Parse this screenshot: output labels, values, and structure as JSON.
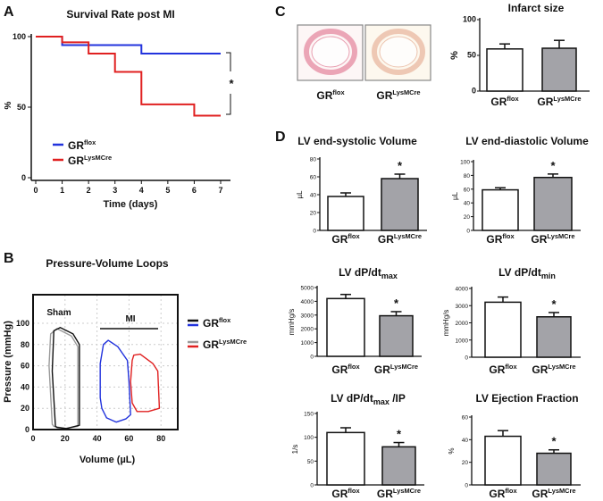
{
  "panel_labels": {
    "a": "A",
    "b": "B",
    "c": "C",
    "d": "D"
  },
  "groups": [
    {
      "base": "GR",
      "sup": "flox"
    },
    {
      "base": "GR",
      "sup": "LysMCre"
    }
  ],
  "colors": {
    "white_bar": "#ffffff",
    "gray_bar": "#a3a3a8",
    "blue": "#2233dd",
    "red": "#e02020",
    "black": "#111111",
    "gray": "#9a9a9a"
  },
  "chart_data": [
    {
      "type": "line",
      "title": "Survival Rate post MI",
      "xlabel": "Time (days)",
      "ylabel": "%",
      "xlim": [
        0,
        7
      ],
      "ylim": [
        0,
        100
      ],
      "xticks": [
        "0",
        "1",
        "2",
        "3",
        "4",
        "5",
        "6",
        "7"
      ],
      "yticks": [
        "0",
        "50",
        "100"
      ],
      "legend": "bottom-left",
      "significance": "*",
      "series": [
        {
          "group": 0,
          "color": "#2233dd",
          "x": [
            0,
            1,
            1,
            4,
            4,
            7
          ],
          "y": [
            100,
            100,
            94,
            94,
            88,
            88
          ]
        },
        {
          "group": 1,
          "color": "#e02020",
          "x": [
            0,
            1,
            1,
            2,
            2,
            3,
            3,
            4,
            4,
            6,
            6,
            7
          ],
          "y": [
            100,
            100,
            96,
            96,
            88,
            88,
            75,
            75,
            52,
            52,
            44,
            44
          ]
        }
      ]
    },
    {
      "type": "line",
      "title": "Pressure-Volume Loops",
      "xlabel": "Volume (µL)",
      "ylabel": "Pressure (mmHg)",
      "xlim": [
        0,
        90
      ],
      "ylim": [
        0,
        127
      ],
      "xticks": [
        "0",
        "20",
        "40",
        "60",
        "80"
      ],
      "yticks": [
        "0",
        "20",
        "40",
        "60",
        "80",
        "100"
      ],
      "grid": true,
      "annotations": {
        "sham": "Sham",
        "mi": "MI"
      },
      "legend": [
        {
          "group": 0,
          "colors": [
            "#111111",
            "#2233dd"
          ]
        },
        {
          "group": 1,
          "colors": [
            "#9a9a9a",
            "#e02020"
          ]
        }
      ],
      "series": [
        {
          "condition": "Sham",
          "group": 1,
          "color": "#9a9a9a",
          "x": [
            12,
            10,
            11,
            15,
            24,
            28,
            28,
            20,
            13
          ],
          "y": [
            5,
            60,
            90,
            95,
            88,
            78,
            3,
            1,
            3
          ]
        },
        {
          "condition": "Sham",
          "group": 0,
          "color": "#111111",
          "x": [
            14,
            12,
            13,
            17,
            25,
            29,
            29,
            21,
            15
          ],
          "y": [
            3,
            55,
            93,
            96,
            90,
            80,
            4,
            1,
            2
          ]
        },
        {
          "condition": "MI",
          "group": 0,
          "color": "#2233dd",
          "x": [
            42,
            42,
            44,
            47,
            53,
            59,
            60,
            61,
            58,
            52,
            46,
            43
          ],
          "y": [
            30,
            62,
            80,
            84,
            78,
            65,
            45,
            14,
            10,
            7,
            11,
            20
          ]
        },
        {
          "condition": "MI",
          "group": 1,
          "color": "#e02020",
          "x": [
            61,
            62,
            63,
            67,
            75,
            78,
            79,
            72,
            65,
            62
          ],
          "y": [
            45,
            65,
            70,
            71,
            62,
            55,
            20,
            17,
            17,
            25
          ]
        }
      ]
    },
    {
      "type": "image",
      "caption_groups": [
        0,
        1
      ]
    },
    {
      "type": "bar",
      "title": "Infarct size",
      "title_sub": "",
      "title_suffix": "",
      "ylabel": "%",
      "ylim": [
        0,
        100
      ],
      "yticks": [
        "0",
        "50",
        "100"
      ],
      "values": [
        59,
        60
      ],
      "errors": [
        7,
        11
      ],
      "significance": [
        "",
        ""
      ]
    },
    {
      "type": "bar",
      "title": "LV end-systolic Volume",
      "title_sub": "",
      "title_suffix": "",
      "ylabel": "µL",
      "ylim": [
        0,
        80
      ],
      "yticks": [
        "0",
        "20",
        "40",
        "60",
        "80"
      ],
      "values": [
        38,
        58
      ],
      "errors": [
        4,
        5
      ],
      "significance": [
        "",
        "*"
      ]
    },
    {
      "type": "bar",
      "title": "LV end-diastolic Volume",
      "title_sub": "",
      "title_suffix": "",
      "ylabel": "µL",
      "ylim": [
        0,
        100
      ],
      "yticks": [
        "0",
        "20",
        "40",
        "60",
        "80",
        "100"
      ],
      "values": [
        59,
        77
      ],
      "errors": [
        3,
        5
      ],
      "significance": [
        "",
        "*"
      ]
    },
    {
      "type": "bar",
      "title": "LV dP/dt",
      "title_sub": "max",
      "title_suffix": "",
      "ylabel": "mmHg/s",
      "ylim": [
        0,
        5000
      ],
      "yticks": [
        "0",
        "1000",
        "2000",
        "3000",
        "4000",
        "5000"
      ],
      "values": [
        4200,
        2950
      ],
      "errors": [
        300,
        300
      ],
      "significance": [
        "",
        "*"
      ]
    },
    {
      "type": "bar",
      "title": "LV dP/dt",
      "title_sub": "min",
      "title_suffix": "",
      "ylabel": "mmHg/s",
      "ylim": [
        0,
        4000
      ],
      "yticks": [
        "0",
        "1000",
        "2000",
        "3000",
        "4000"
      ],
      "values": [
        3200,
        2350
      ],
      "errors": [
        300,
        250
      ],
      "significance": [
        "",
        "*"
      ]
    },
    {
      "type": "bar",
      "title": "LV  dP/dt",
      "title_sub": "max",
      "title_suffix": " /IP",
      "ylabel": "1/s",
      "ylim": [
        0,
        150
      ],
      "yticks": [
        "0",
        "50",
        "100",
        "150"
      ],
      "values": [
        110,
        80
      ],
      "errors": [
        10,
        9
      ],
      "significance": [
        "",
        "*"
      ]
    },
    {
      "type": "bar",
      "title": "LV Ejection Fraction",
      "title_sub": "",
      "title_suffix": "",
      "ylabel": "%",
      "ylim": [
        0,
        60
      ],
      "yticks": [
        "0",
        "20",
        "40",
        "60"
      ],
      "values": [
        43,
        28
      ],
      "errors": [
        5,
        3
      ],
      "significance": [
        "",
        "*"
      ]
    }
  ]
}
